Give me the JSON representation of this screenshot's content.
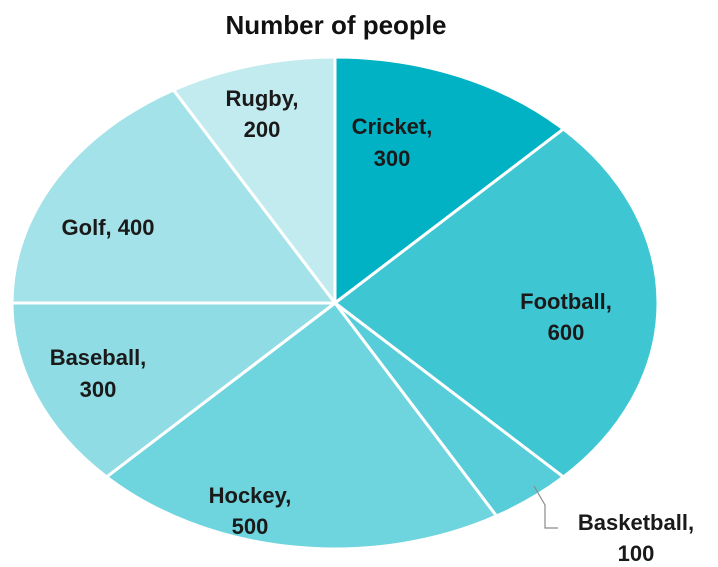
{
  "chart_data": {
    "type": "pie",
    "title": "Number of people",
    "start": "12 o'clock, clockwise",
    "legend": "none (category labels on slices)",
    "slices": [
      {
        "label": "Cricket",
        "value": 300,
        "label_line1": "Cricket,",
        "label_line2": "300",
        "color": "#00b2c3"
      },
      {
        "label": "Football",
        "value": 600,
        "label_line1": "Football,",
        "label_line2": "600",
        "color": "#3fc6d3"
      },
      {
        "label": "Basketball",
        "value": 100,
        "label_line1": "Basketball,",
        "label_line2": "100",
        "color": "#56cdd8"
      },
      {
        "label": "Hockey",
        "value": 500,
        "label_line1": "Hockey,",
        "label_line2": "500",
        "color": "#6ed4dd"
      },
      {
        "label": "Baseball",
        "value": 300,
        "label_line1": "Baseball,",
        "label_line2": "300",
        "color": "#8fdce4"
      },
      {
        "label": "Golf",
        "value": 400,
        "label_line1": "Golf, 400",
        "label_line2": "",
        "color": "#a4e2e9"
      },
      {
        "label": "Rugby",
        "value": 200,
        "label_line1": "Rugby,",
        "label_line2": "200",
        "color": "#c2ebef"
      }
    ]
  }
}
